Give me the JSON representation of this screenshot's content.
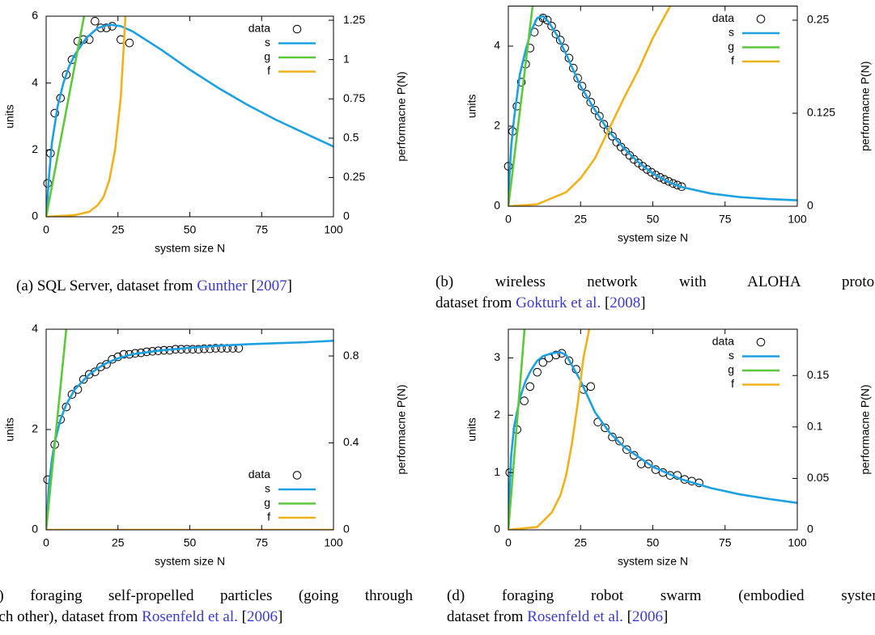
{
  "chart_data": [
    {
      "type": "line",
      "xlabel": "system size N",
      "ylabel": "units",
      "y2label": "performacne P(N)",
      "xlim": [
        0,
        100
      ],
      "ylim": [
        0,
        6
      ],
      "y2lim": [
        0,
        1.276
      ],
      "xticks": [
        0,
        25,
        50,
        75,
        100
      ],
      "yticks": [
        0,
        2,
        4,
        6
      ],
      "y2ticks": [
        0,
        0.25,
        0.5,
        0.75,
        1,
        1.25
      ],
      "legend": "top-right",
      "series": [
        {
          "name": "data",
          "mode": "markers",
          "color": "#000000",
          "x": [
            0.5,
            1.5,
            3,
            5,
            7,
            9,
            11,
            13,
            15,
            17,
            19,
            21,
            23,
            26,
            29
          ],
          "values": [
            1.0,
            1.9,
            3.1,
            3.55,
            4.25,
            4.7,
            5.25,
            5.3,
            5.3,
            5.85,
            5.65,
            5.65,
            5.7,
            5.3,
            5.2
          ]
        },
        {
          "name": "s",
          "mode": "lines",
          "color": "#1ba1e2",
          "x": [
            0,
            1,
            2,
            4,
            6,
            8,
            10,
            14,
            18,
            22,
            26,
            30,
            40,
            50,
            60,
            70,
            80,
            90,
            100
          ],
          "values": [
            0,
            1.2,
            2.2,
            3.3,
            4.0,
            4.5,
            4.85,
            5.35,
            5.65,
            5.75,
            5.7,
            5.55,
            5.0,
            4.4,
            3.85,
            3.35,
            2.9,
            2.5,
            2.1
          ]
        },
        {
          "name": "g",
          "mode": "lines",
          "color": "#5cc83b",
          "x": [
            0,
            13.2
          ],
          "values": [
            0,
            6
          ]
        },
        {
          "name": "f",
          "mode": "lines",
          "color": "#f0b21c",
          "x": [
            0,
            10,
            15,
            18,
            20,
            22,
            24,
            26,
            27.6
          ],
          "values": [
            0,
            0.05,
            0.15,
            0.35,
            0.6,
            1.1,
            2.0,
            3.6,
            6
          ]
        }
      ],
      "caption": [
        [
          "(a) SQL Server, dataset from ",
          "Gunther",
          " [",
          "2007",
          "]"
        ]
      ]
    },
    {
      "type": "line",
      "xlabel": "system size N",
      "ylabel": "units",
      "y2label": "performacne P(N)",
      "xlim": [
        0,
        100
      ],
      "ylim": [
        0,
        5
      ],
      "y2lim": [
        0,
        0.269
      ],
      "xticks": [
        0,
        25,
        50,
        75,
        100
      ],
      "yticks": [
        0,
        2,
        4
      ],
      "y2ticks": [
        0,
        0.125,
        0.25
      ],
      "legend": "top-right",
      "series": [
        {
          "name": "data",
          "mode": "markers",
          "color": "#000000",
          "x": [
            0,
            1.5,
            3,
            4.5,
            6,
            7.5,
            9,
            10.5,
            12,
            13.5,
            15,
            16.5,
            18,
            19.5,
            21,
            22.5,
            24,
            25.5,
            27,
            28.5,
            30,
            31.5,
            33,
            34.5,
            36,
            37.5,
            39,
            40.5,
            42,
            43.5,
            45,
            46.5,
            48,
            49.5,
            51,
            52.5,
            54,
            55.5,
            57,
            58.5,
            60
          ],
          "values": [
            1.0,
            1.87,
            2.5,
            3.1,
            3.55,
            3.95,
            4.35,
            4.6,
            4.7,
            4.65,
            4.5,
            4.3,
            4.15,
            3.95,
            3.7,
            3.45,
            3.2,
            3.0,
            2.8,
            2.6,
            2.4,
            2.25,
            2.05,
            1.9,
            1.75,
            1.6,
            1.48,
            1.37,
            1.27,
            1.17,
            1.08,
            1.0,
            0.92,
            0.85,
            0.78,
            0.72,
            0.67,
            0.62,
            0.57,
            0.53,
            0.49
          ]
        },
        {
          "name": "s",
          "mode": "lines",
          "color": "#1ba1e2",
          "x": [
            0,
            1,
            2,
            4,
            6,
            8,
            10,
            12,
            14,
            17,
            20,
            25,
            30,
            35,
            40,
            45,
            50,
            55,
            60,
            70,
            80,
            90,
            100
          ],
          "values": [
            0.3,
            1.5,
            2.2,
            3.3,
            3.9,
            4.4,
            4.7,
            4.75,
            4.6,
            4.25,
            3.8,
            3.0,
            2.4,
            1.85,
            1.45,
            1.1,
            0.82,
            0.62,
            0.48,
            0.32,
            0.23,
            0.18,
            0.15
          ]
        },
        {
          "name": "g",
          "mode": "lines",
          "color": "#5cc83b",
          "x": [
            0,
            8.4
          ],
          "values": [
            0,
            5
          ]
        },
        {
          "name": "f",
          "mode": "lines",
          "color": "#f0b21c",
          "x": [
            0,
            10,
            20,
            25,
            30,
            35,
            40,
            45,
            50,
            56
          ],
          "values": [
            0,
            0.05,
            0.35,
            0.7,
            1.2,
            1.95,
            2.7,
            3.4,
            4.2,
            5.0
          ]
        }
      ],
      "caption": [
        [
          "(b) wireless network with ALOHA protoco"
        ],
        [
          "dataset from ",
          "Gokturk et al.",
          " [",
          "2008",
          "]"
        ]
      ]
    },
    {
      "type": "line",
      "xlabel": "system size N",
      "ylabel": "units",
      "y2label": "performacne P(N)",
      "xlim": [
        0,
        100
      ],
      "ylim": [
        0,
        4
      ],
      "y2lim": [
        0,
        0.923
      ],
      "xticks": [
        0,
        25,
        50,
        75,
        100
      ],
      "yticks": [
        0,
        2,
        4
      ],
      "y2ticks": [
        0,
        0.4,
        0.8
      ],
      "legend": "bottom-right",
      "series": [
        {
          "name": "data",
          "mode": "markers",
          "color": "#000000",
          "x": [
            0.5,
            3,
            5,
            7,
            9,
            11,
            13,
            15,
            17,
            19,
            21,
            23,
            25,
            27,
            29,
            31,
            33,
            35,
            37,
            39,
            41,
            43,
            45,
            47,
            49,
            51,
            53,
            55,
            57,
            59,
            61,
            63,
            65,
            67
          ],
          "values": [
            1.0,
            1.7,
            2.2,
            2.45,
            2.7,
            2.8,
            3.0,
            3.1,
            3.15,
            3.25,
            3.3,
            3.4,
            3.45,
            3.5,
            3.5,
            3.52,
            3.53,
            3.55,
            3.56,
            3.57,
            3.58,
            3.58,
            3.6,
            3.6,
            3.6,
            3.6,
            3.6,
            3.61,
            3.61,
            3.62,
            3.62,
            3.62,
            3.62,
            3.62
          ]
        },
        {
          "name": "s",
          "mode": "lines",
          "color": "#1ba1e2",
          "x": [
            0,
            1,
            2,
            3,
            5,
            7,
            10,
            15,
            20,
            25,
            30,
            40,
            50,
            60,
            70,
            80,
            90,
            100
          ],
          "values": [
            0,
            0.9,
            1.4,
            1.75,
            2.2,
            2.5,
            2.8,
            3.1,
            3.3,
            3.42,
            3.5,
            3.58,
            3.63,
            3.67,
            3.7,
            3.72,
            3.74,
            3.77
          ]
        },
        {
          "name": "g",
          "mode": "lines",
          "color": "#5cc83b",
          "x": [
            0,
            7
          ],
          "values": [
            0,
            4
          ]
        },
        {
          "name": "f",
          "mode": "lines",
          "color": "#f0b21c",
          "x": [
            0,
            100
          ],
          "values": [
            0,
            0
          ]
        }
      ],
      "caption": [
        [
          "c) foraging self-propelled particles (going through"
        ],
        [
          "ach other), dataset from ",
          "Rosenfeld et al.",
          " [",
          "2006",
          "]"
        ]
      ]
    },
    {
      "type": "line",
      "xlabel": "system size N",
      "ylabel": "units",
      "y2label": "performacne P(N)",
      "xlim": [
        0,
        100
      ],
      "ylim": [
        0,
        3.5
      ],
      "y2lim": [
        0,
        0.195
      ],
      "xticks": [
        0,
        25,
        50,
        75,
        100
      ],
      "yticks": [
        0,
        1,
        2,
        3
      ],
      "y2ticks": [
        0,
        0.05,
        0.1,
        0.15
      ],
      "legend": "top-right",
      "series": [
        {
          "name": "data",
          "mode": "markers",
          "color": "#000000",
          "x": [
            0.5,
            3,
            5.5,
            7.5,
            10,
            12,
            14,
            16.5,
            18.5,
            21,
            23.5,
            26,
            28.5,
            31,
            33.5,
            36,
            38.5,
            41,
            43.5,
            46,
            48.5,
            51,
            53.5,
            56,
            58.5,
            61,
            63.5,
            66
          ],
          "values": [
            1.0,
            1.75,
            2.25,
            2.5,
            2.75,
            2.92,
            3.0,
            3.05,
            3.08,
            2.95,
            2.8,
            2.45,
            2.5,
            1.88,
            1.78,
            1.62,
            1.55,
            1.4,
            1.3,
            1.15,
            1.15,
            1.05,
            1.0,
            0.95,
            0.95,
            0.88,
            0.85,
            0.82
          ]
        },
        {
          "name": "s",
          "mode": "lines",
          "color": "#1ba1e2",
          "x": [
            0,
            1,
            2,
            4,
            6,
            8,
            10,
            12,
            15,
            18,
            20,
            25,
            30,
            35,
            40,
            50,
            60,
            70,
            80,
            90,
            100
          ],
          "values": [
            0.3,
            1.3,
            1.8,
            2.3,
            2.6,
            2.8,
            2.95,
            3.03,
            3.08,
            3.1,
            3.05,
            2.6,
            2.05,
            1.7,
            1.45,
            1.1,
            0.88,
            0.73,
            0.62,
            0.54,
            0.47
          ]
        },
        {
          "name": "g",
          "mode": "lines",
          "color": "#5cc83b",
          "x": [
            0,
            5.6
          ],
          "values": [
            0,
            3.5
          ]
        },
        {
          "name": "f",
          "mode": "lines",
          "color": "#f0b21c",
          "x": [
            0,
            10,
            15,
            18,
            20,
            22,
            24,
            26,
            28
          ],
          "values": [
            0,
            0.05,
            0.3,
            0.6,
            0.95,
            1.5,
            2.2,
            3.0,
            3.5
          ]
        }
      ],
      "caption": [
        [
          "(d) foraging robot swarm (embodied system"
        ],
        [
          "dataset from ",
          "Rosenfeld et al.",
          " [",
          "2006",
          "]"
        ]
      ]
    }
  ]
}
